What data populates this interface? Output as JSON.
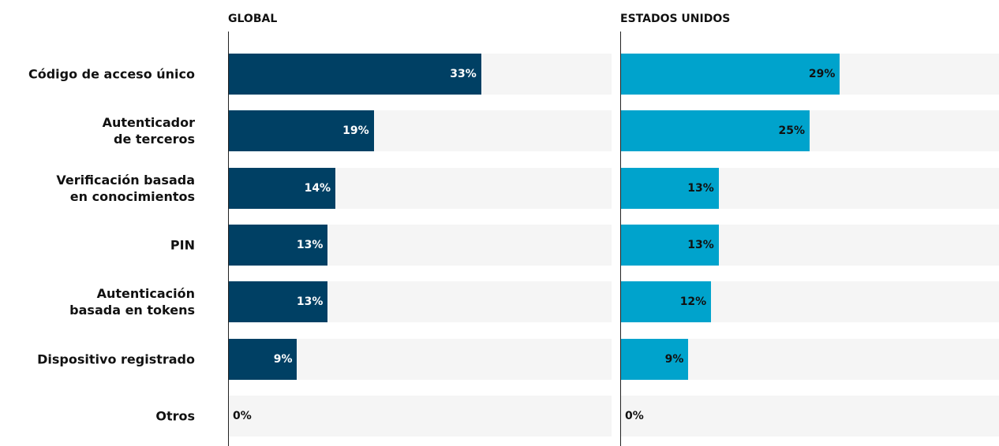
{
  "chart_data": {
    "type": "bar",
    "orientation": "horizontal",
    "categories": [
      "Código de acceso único",
      "Autenticador\nde terceros",
      "Verificación basada\nen conocimientos",
      "PIN",
      "Autenticación\nbasada en tokens",
      "Dispositivo registrado",
      "Otros"
    ],
    "xlim": [
      0,
      50
    ],
    "series": [
      {
        "name": "GLOBAL",
        "color": "#004064",
        "label_color": "#ffffff",
        "values": [
          33,
          19,
          14,
          13,
          13,
          9,
          0
        ],
        "value_labels": [
          "33%",
          "19%",
          "14%",
          "13%",
          "13%",
          "9%",
          "0%"
        ]
      },
      {
        "name": "ESTADOS UNIDOS",
        "color": "#00a3cc",
        "label_color": "#111111",
        "values": [
          29,
          25,
          13,
          13,
          12,
          9,
          0
        ],
        "value_labels": [
          "29%",
          "25%",
          "13%",
          "13%",
          "12%",
          "9%",
          "0%"
        ]
      }
    ]
  }
}
